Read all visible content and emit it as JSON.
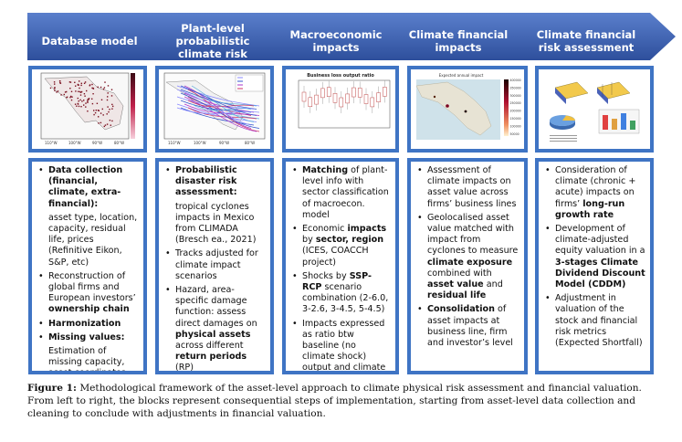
{
  "stages": [
    {
      "title": "Database model"
    },
    {
      "title": "Plant-level probabilistic climate risk assessment"
    },
    {
      "title": "Macroeconomic impacts"
    },
    {
      "title": "Climate financial impacts"
    },
    {
      "title": "Climate financial risk assessment"
    }
  ],
  "thumbs": {
    "map1_ticks": [
      "110°W",
      "100°W",
      "90°W",
      "80°W"
    ],
    "map2_ticks": [
      "110°W",
      "100°W",
      "90°W",
      "80°W"
    ],
    "boxplot_title": "Business loss output ratio",
    "map4_title": "Expected annual impact",
    "map4_scale": [
      "400000",
      "350000",
      "300000",
      "250000",
      "200000",
      "150000",
      "100000",
      "50000"
    ]
  },
  "col1": {
    "b1_bold": "Data collection (financial, climate, extra-financial):",
    "b1_sub": "asset type, location, capacity, residual life, prices (Refinitive Eikon, S&P, etc)",
    "b2_pre": "Reconstruction of global firms and European investors’ ",
    "b2_bold": "ownership chain",
    "b3_bold": "Harmonization",
    "b4_bold": "Missing values:",
    "b4_sub": "Estimation of missing capacity, asset coordinates, etc"
  },
  "col2": {
    "b1_bold": "Probabilistic disaster risk assessment:",
    "b1_sub": "tropical cyclones impacts in Mexico from CLIMADA (Bresch ea., 2021)",
    "b2": "Tracks adjusted for climate impact scenarios",
    "b3_pre": "Hazard, area-specific damage function: assess direct damages on ",
    "b3_bold1": "physical assets",
    "b3_mid": " across different ",
    "b3_bold2": "return periods",
    "b3_post": " (RP)"
  },
  "col3": {
    "b1_bold": "Matching",
    "b1_post": " of plant-level info with sector classification of macroecon. model",
    "b2_pre": "Economic ",
    "b2_bold": "impacts",
    "b2_mid": " by ",
    "b2_bold2": "sector, region",
    "b2_post": " (ICES, COACCH project)",
    "b3_pre": "Shocks by ",
    "b3_bold": "SSP-RCP",
    "b3_post": " scenario combination (2-6.0, 3-2.6, 3-4.5, 5-4.5)",
    "b4": "Impacts expressed as ratio btw baseline (no climate shock) output and climate adjusted output by sector."
  },
  "col4": {
    "b1": "Assessment of climate impacts on asset value across firms’ business lines",
    "b2_pre": "Geolocalised asset value matched with impact from cyclones to measure ",
    "b2_bold": "climate exposure",
    "b2_mid": " combined with ",
    "b2_bold2": "asset value",
    "b2_and": " and ",
    "b2_bold3": "residual life",
    "b3_bold": "Consolidation",
    "b3_post": " of asset impacts at business line, firm and investor’s level"
  },
  "col5": {
    "b1_pre": "Consideration of climate (chronic + acute) impacts on firms’ ",
    "b1_bold": "long-run growth rate",
    "b2_pre": "Development of climate-adjusted equity valuation in a ",
    "b2_bold": "3-stages Climate Dividend Discount Model (CDDM)",
    "b3": "Adjustment in valuation of the stock and financial risk metrics (Expected Shortfall)"
  },
  "caption": {
    "label": "Figure 1:",
    "text": " Methodological framework of the asset-level approach to climate physical risk assessment and financial valuation. From left to right, the blocks represent consequential steps of implementation, starting from asset-level data collection and cleaning to conclude with adjustments in financial valuation."
  },
  "colors": {
    "arrow": "#3a5fb0",
    "border": "#3f74c4"
  }
}
